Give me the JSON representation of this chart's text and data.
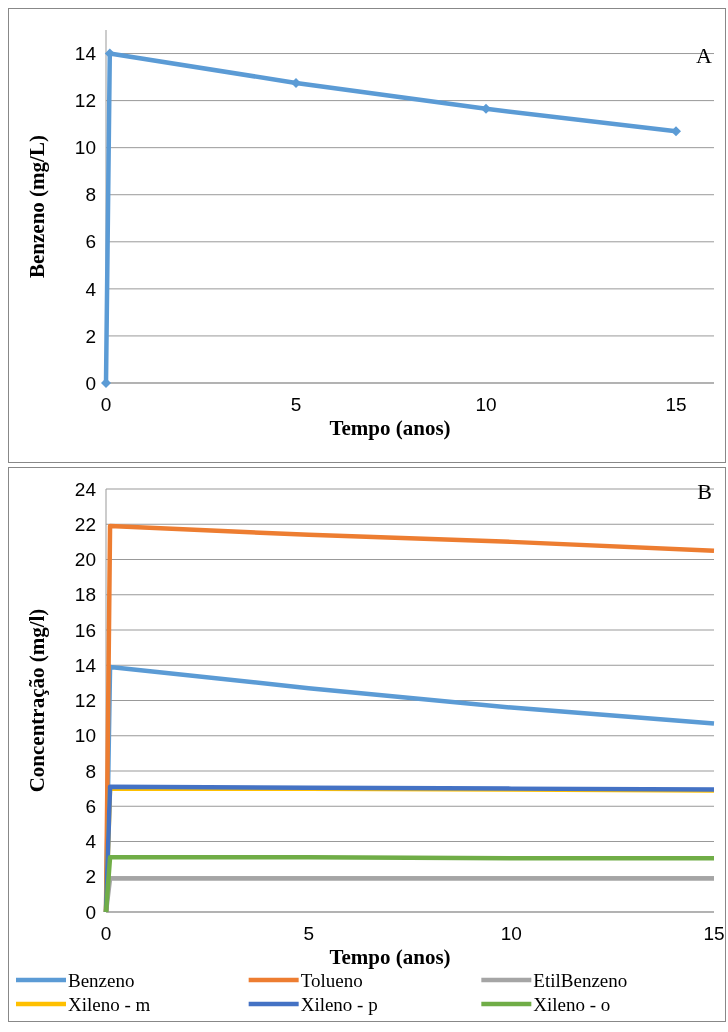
{
  "chart_data": [
    {
      "type": "line",
      "annotations": [
        "A"
      ],
      "xlabel": "Tempo (anos)",
      "ylabel": "Benzeno (mg/L)",
      "x": [
        0,
        0.1,
        5,
        10,
        15
      ],
      "xlim": [
        0,
        16
      ],
      "xticks": [
        0,
        5,
        10,
        15
      ],
      "ylim": [
        0,
        15
      ],
      "yticks": [
        0,
        2,
        4,
        6,
        8,
        10,
        12,
        14
      ],
      "grid": "y",
      "marker": "diamond",
      "legend": false,
      "series": [
        {
          "color": "#5b9bd5",
          "values": [
            0,
            14,
            12.75,
            11.65,
            10.7
          ]
        }
      ]
    },
    {
      "type": "line",
      "annotations": [
        "B"
      ],
      "xlabel": "Tempo (anos)",
      "ylabel": "Concentração (mg/l)",
      "x": [
        0,
        0.1,
        5,
        10,
        15
      ],
      "xlim": [
        0,
        15
      ],
      "xticks": [
        0,
        5,
        10,
        15
      ],
      "ylim": [
        0,
        24
      ],
      "yticks": [
        0,
        2,
        4,
        6,
        8,
        10,
        12,
        14,
        16,
        18,
        20,
        22,
        24
      ],
      "grid": "y",
      "legend": "bottom",
      "series": [
        {
          "name": "Benzeno",
          "color": "#5b9bd5",
          "values": [
            0,
            13.9,
            12.7,
            11.6,
            10.7
          ]
        },
        {
          "name": "Tolueno",
          "color": "#ed7d31",
          "values": [
            0,
            21.9,
            21.4,
            21.0,
            20.5
          ]
        },
        {
          "name": "EtilBenzeno",
          "color": "#a5a5a5",
          "values": [
            0,
            1.9,
            1.9,
            1.9,
            1.9
          ]
        },
        {
          "name": "Xileno - m",
          "color": "#ffc000",
          "values": [
            0,
            7.0,
            7.0,
            6.95,
            6.9
          ]
        },
        {
          "name": "Xileno - p",
          "color": "#4472c4",
          "values": [
            0,
            7.1,
            7.05,
            7.0,
            6.95
          ]
        },
        {
          "name": "Xileno - o",
          "color": "#70ad47",
          "values": [
            0,
            3.1,
            3.1,
            3.05,
            3.05
          ]
        }
      ]
    }
  ]
}
